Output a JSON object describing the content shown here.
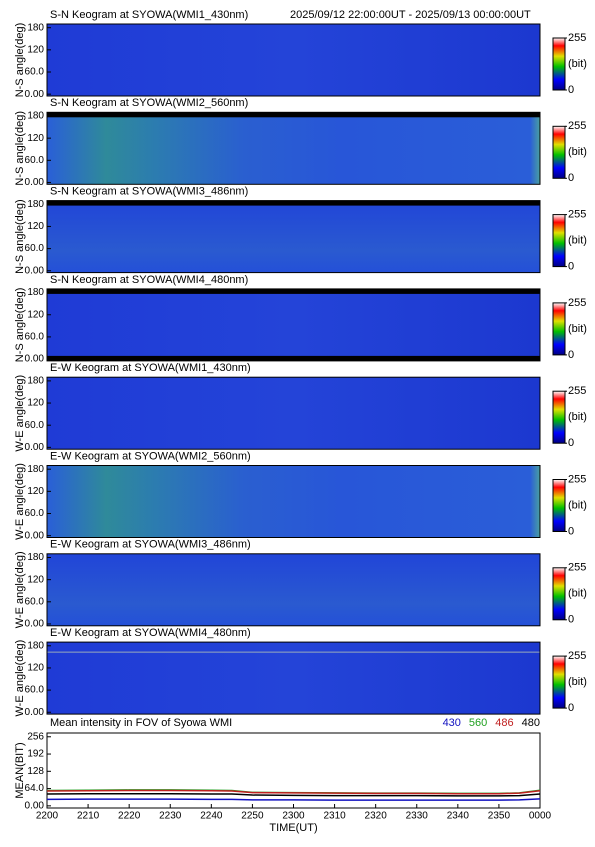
{
  "header": {
    "time_range": "2025/09/12 22:00:00UT - 2025/09/13 00:00:00UT"
  },
  "chart_data": [
    {
      "type": "keogram",
      "title": "S-N Keogram at SYOWA(WMI1_430nm)",
      "ylabel": "N-S angle(deg)",
      "ylim": [
        -5,
        190
      ],
      "yticks": [
        {
          "value": 0,
          "label": "0.00"
        },
        {
          "value": 60,
          "label": "60.0"
        },
        120,
        180
      ],
      "clim": [
        0,
        255
      ],
      "cticks": [
        0,
        255
      ],
      "clabel": "(bit)"
    },
    {
      "type": "keogram",
      "title": "S-N Keogram at SYOWA(WMI2_560nm)",
      "ylabel": "N-S angle(deg)",
      "ylim": [
        -5,
        190
      ],
      "yticks": [
        {
          "value": 0,
          "label": "0.00"
        },
        {
          "value": 60,
          "label": "60.0"
        },
        120,
        180
      ],
      "clim": [
        0,
        255
      ],
      "cticks": [
        0,
        255
      ],
      "clabel": "(bit)"
    },
    {
      "type": "keogram",
      "title": "S-N Keogram at SYOWA(WMI3_486nm)",
      "ylabel": "N-S angle(deg)",
      "ylim": [
        -5,
        190
      ],
      "yticks": [
        {
          "value": 0,
          "label": "0.00"
        },
        {
          "value": 60,
          "label": "60.0"
        },
        120,
        180
      ],
      "clim": [
        0,
        255
      ],
      "cticks": [
        0,
        255
      ],
      "clabel": "(bit)"
    },
    {
      "type": "keogram",
      "title": "S-N Keogram at SYOWA(WMI4_480nm)",
      "ylabel": "N-S angle(deg)",
      "ylim": [
        -5,
        190
      ],
      "yticks": [
        {
          "value": 0,
          "label": "0.00"
        },
        {
          "value": 60,
          "label": "60.0"
        },
        120,
        180
      ],
      "clim": [
        0,
        255
      ],
      "cticks": [
        0,
        255
      ],
      "clabel": "(bit)"
    },
    {
      "type": "keogram",
      "title": "E-W Keogram at SYOWA(WMI1_430nm)",
      "ylabel": "W-E angle(deg)",
      "ylim": [
        -5,
        190
      ],
      "yticks": [
        {
          "value": 0,
          "label": "0.00"
        },
        {
          "value": 60,
          "label": "60.0"
        },
        120,
        180
      ],
      "clim": [
        0,
        255
      ],
      "cticks": [
        0,
        255
      ],
      "clabel": "(bit)"
    },
    {
      "type": "keogram",
      "title": "E-W Keogram at SYOWA(WMI2_560nm)",
      "ylabel": "W-E angle(deg)",
      "ylim": [
        -5,
        190
      ],
      "yticks": [
        {
          "value": 0,
          "label": "0.00"
        },
        {
          "value": 60,
          "label": "60.0"
        },
        120,
        180
      ],
      "clim": [
        0,
        255
      ],
      "cticks": [
        0,
        255
      ],
      "clabel": "(bit)"
    },
    {
      "type": "keogram",
      "title": "E-W Keogram at SYOWA(WMI3_486nm)",
      "ylabel": "W-E angle(deg)",
      "ylim": [
        -5,
        190
      ],
      "yticks": [
        {
          "value": 0,
          "label": "0.00"
        },
        {
          "value": 60,
          "label": "60.0"
        },
        120,
        180
      ],
      "clim": [
        0,
        255
      ],
      "cticks": [
        0,
        255
      ],
      "clabel": "(bit)"
    },
    {
      "type": "keogram",
      "title": "E-W Keogram at SYOWA(WMI4_480nm)",
      "ylabel": "W-E angle(deg)",
      "ylim": [
        -5,
        190
      ],
      "yticks": [
        {
          "value": 0,
          "label": "0.00"
        },
        {
          "value": 60,
          "label": "60.0"
        },
        120,
        180
      ],
      "clim": [
        0,
        255
      ],
      "cticks": [
        0,
        255
      ],
      "clabel": "(bit)"
    },
    {
      "type": "line",
      "title": "Mean intensity in FOV of Syowa WMI",
      "ylabel": "MEAN(BIT)",
      "xlabel": "TIME(UT)",
      "x": [
        0,
        10,
        20,
        30,
        40,
        45,
        50,
        60,
        70,
        80,
        90,
        100,
        110,
        115,
        120
      ],
      "xlim": [
        0,
        120
      ],
      "xticks": [
        {
          "value": 0,
          "label": "2200"
        },
        {
          "value": 10,
          "label": "2210"
        },
        {
          "value": 20,
          "label": "2220"
        },
        {
          "value": 30,
          "label": "2230"
        },
        {
          "value": 40,
          "label": "2240"
        },
        {
          "value": 50,
          "label": "2250"
        },
        {
          "value": 60,
          "label": "2300"
        },
        {
          "value": 70,
          "label": "2310"
        },
        {
          "value": 80,
          "label": "2320"
        },
        {
          "value": 90,
          "label": "2330"
        },
        {
          "value": 100,
          "label": "2340"
        },
        {
          "value": 110,
          "label": "2350"
        },
        {
          "value": 120,
          "label": "0000"
        }
      ],
      "ylim": [
        -8,
        270
      ],
      "yticks": [
        {
          "value": 0,
          "label": "0.00"
        },
        {
          "value": 64,
          "label": "64.0"
        },
        128,
        192,
        256
      ],
      "series": [
        {
          "name": "430",
          "color": "#1010c0",
          "values": [
            24,
            25,
            25,
            25,
            24,
            24,
            22,
            22,
            21,
            21,
            21,
            21,
            21,
            22,
            26
          ]
        },
        {
          "name": "560",
          "color": "#20a020",
          "values": [
            57,
            58,
            59,
            59,
            58,
            57,
            50,
            49,
            48,
            47,
            47,
            46,
            46,
            48,
            58
          ]
        },
        {
          "name": "486",
          "color": "#c02020",
          "values": [
            55,
            56,
            57,
            57,
            56,
            55,
            49,
            48,
            47,
            46,
            46,
            45,
            45,
            47,
            56
          ]
        },
        {
          "name": "480",
          "color": "#000000",
          "values": [
            44,
            45,
            45,
            45,
            44,
            44,
            40,
            39,
            38,
            38,
            38,
            37,
            37,
            38,
            44
          ]
        }
      ]
    }
  ]
}
